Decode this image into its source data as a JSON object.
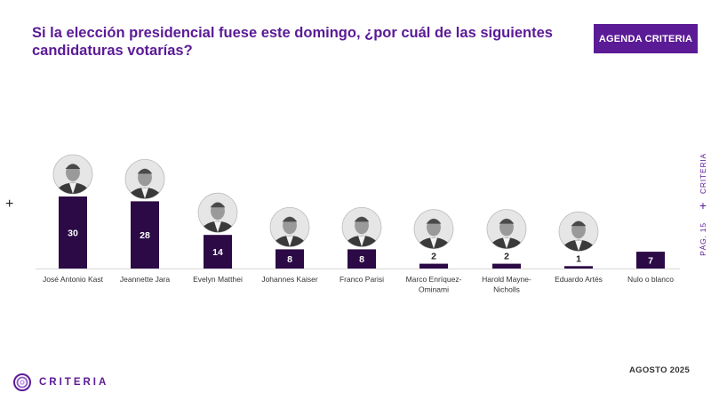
{
  "header": {
    "title": "Si la elección presidencial fuese este domingo, ¿por cuál de las siguientes candidaturas votarías?",
    "badge": "AGENDA CRITERIA"
  },
  "side": {
    "brand": "CRITERIA",
    "page": "PÁG. 15"
  },
  "footer": {
    "date": "AGOSTO 2025",
    "logo_text": "CRITERIA"
  },
  "colors": {
    "bar": "#2b0a45",
    "accent": "#5b1a96"
  },
  "chart_data": {
    "type": "bar",
    "categories": [
      "José Antonio Kast",
      "Jeannette Jara",
      "Evelyn Matthei",
      "Johannes Kaiser",
      "Franco Parisi",
      "Marco Enríquez-Ominami",
      "Harold Mayne-Nicholls",
      "Eduardo Artés",
      "Nulo o blanco"
    ],
    "category_lines": [
      [
        "José Antonio Kast"
      ],
      [
        "Jeannette Jara"
      ],
      [
        "Evelyn Matthei"
      ],
      [
        "Johannes Kaiser"
      ],
      [
        "Franco Parisi"
      ],
      [
        "Marco Enríquez-",
        "Ominami"
      ],
      [
        "Harold Mayne-",
        "Nicholls"
      ],
      [
        "Eduardo Artés"
      ],
      [
        "Nulo o blanco"
      ]
    ],
    "values": [
      30,
      28,
      14,
      8,
      8,
      2,
      2,
      1,
      7
    ],
    "has_photo": [
      true,
      true,
      true,
      true,
      true,
      true,
      true,
      true,
      false
    ],
    "ylim": [
      0,
      30
    ],
    "grid": false,
    "legend": "none",
    "data_labels": true
  }
}
